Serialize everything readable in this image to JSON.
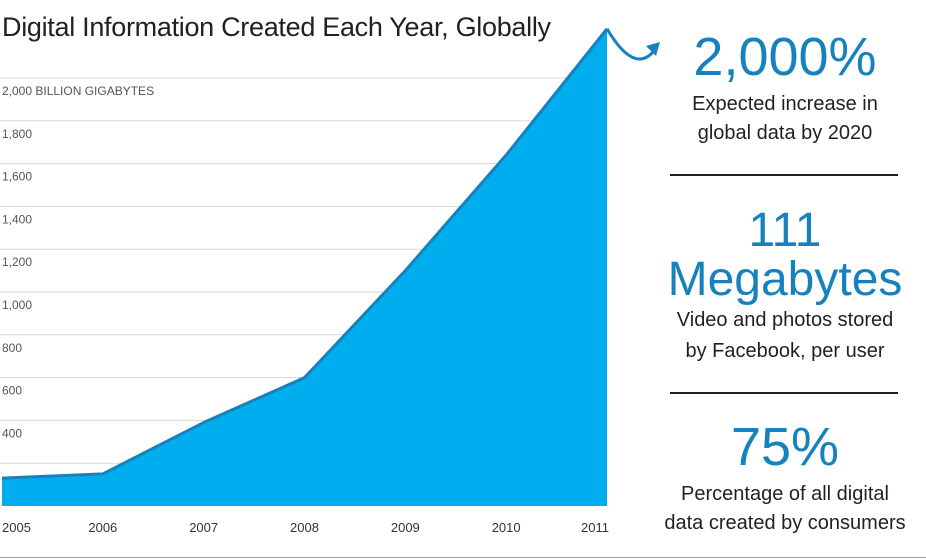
{
  "chart_data": {
    "type": "area",
    "title": "Digital Information Created Each Year, Globally",
    "unit_label": "2,000 BILLION GIGABYTES",
    "x": [
      "2005",
      "2006",
      "2007",
      "2008",
      "2009",
      "2010",
      "2011"
    ],
    "values": [
      130,
      150,
      390,
      600,
      1100,
      1640,
      2230
    ],
    "yticks": [
      {
        "value": 2000,
        "label": "2,000 BILLION GIGABYTES"
      },
      {
        "value": 1800,
        "label": "1,800"
      },
      {
        "value": 1600,
        "label": "1,600"
      },
      {
        "value": 1400,
        "label": "1,400"
      },
      {
        "value": 1200,
        "label": "1,200"
      },
      {
        "value": 1000,
        "label": "1,000"
      },
      {
        "value": 800,
        "label": "800"
      },
      {
        "value": 600,
        "label": "600"
      },
      {
        "value": 400,
        "label": "400"
      },
      {
        "value": 200,
        "label": ""
      }
    ],
    "ylim": [
      0,
      2000
    ],
    "grid": true,
    "series_color": "#00aeef",
    "line_color": "#1582be",
    "trend_arrow": true
  },
  "stats": [
    {
      "value": "2,000%",
      "desc_lines": [
        "Expected increase in",
        "global data by 2020"
      ]
    },
    {
      "value_lines": [
        "111",
        "Megabytes"
      ],
      "desc_lines": [
        "Video and photos stored",
        "by Facebook, per user"
      ]
    },
    {
      "value": "75%",
      "desc_lines": [
        "Percentage of all digital",
        "data created by consumers"
      ]
    }
  ],
  "colors": {
    "accent": "#1582be",
    "area": "#00aeef",
    "grid": "#d9d9d9",
    "text": "#231f20"
  }
}
